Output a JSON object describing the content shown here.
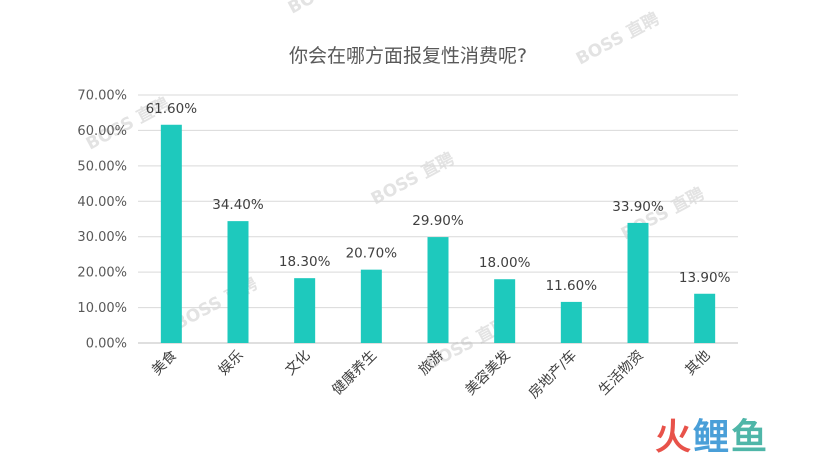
{
  "chart_data": {
    "type": "bar",
    "title": "你会在哪方面报复性消费呢?",
    "categories": [
      "美食",
      "娱乐",
      "文化",
      "健康养生",
      "旅游",
      "美容美发",
      "房地产/车",
      "生活物资",
      "其他"
    ],
    "values": [
      61.6,
      34.4,
      18.3,
      20.7,
      29.9,
      18.0,
      11.6,
      33.9,
      13.9
    ],
    "data_labels": [
      "61.60%",
      "34.40%",
      "18.30%",
      "20.70%",
      "29.90%",
      "18.00%",
      "11.60%",
      "33.90%",
      "13.90%"
    ],
    "ylim": [
      0,
      70
    ],
    "yticks": [
      "0.00%",
      "10.00%",
      "20.00%",
      "30.00%",
      "40.00%",
      "50.00%",
      "60.00%",
      "70.00%"
    ],
    "grid": true,
    "bar_color": "#1ec9bd",
    "xlabel": "",
    "ylabel": ""
  },
  "watermark": "BOSS 直聘",
  "logo": {
    "part1": "火",
    "part2": "鲤",
    "part3": "鱼"
  }
}
